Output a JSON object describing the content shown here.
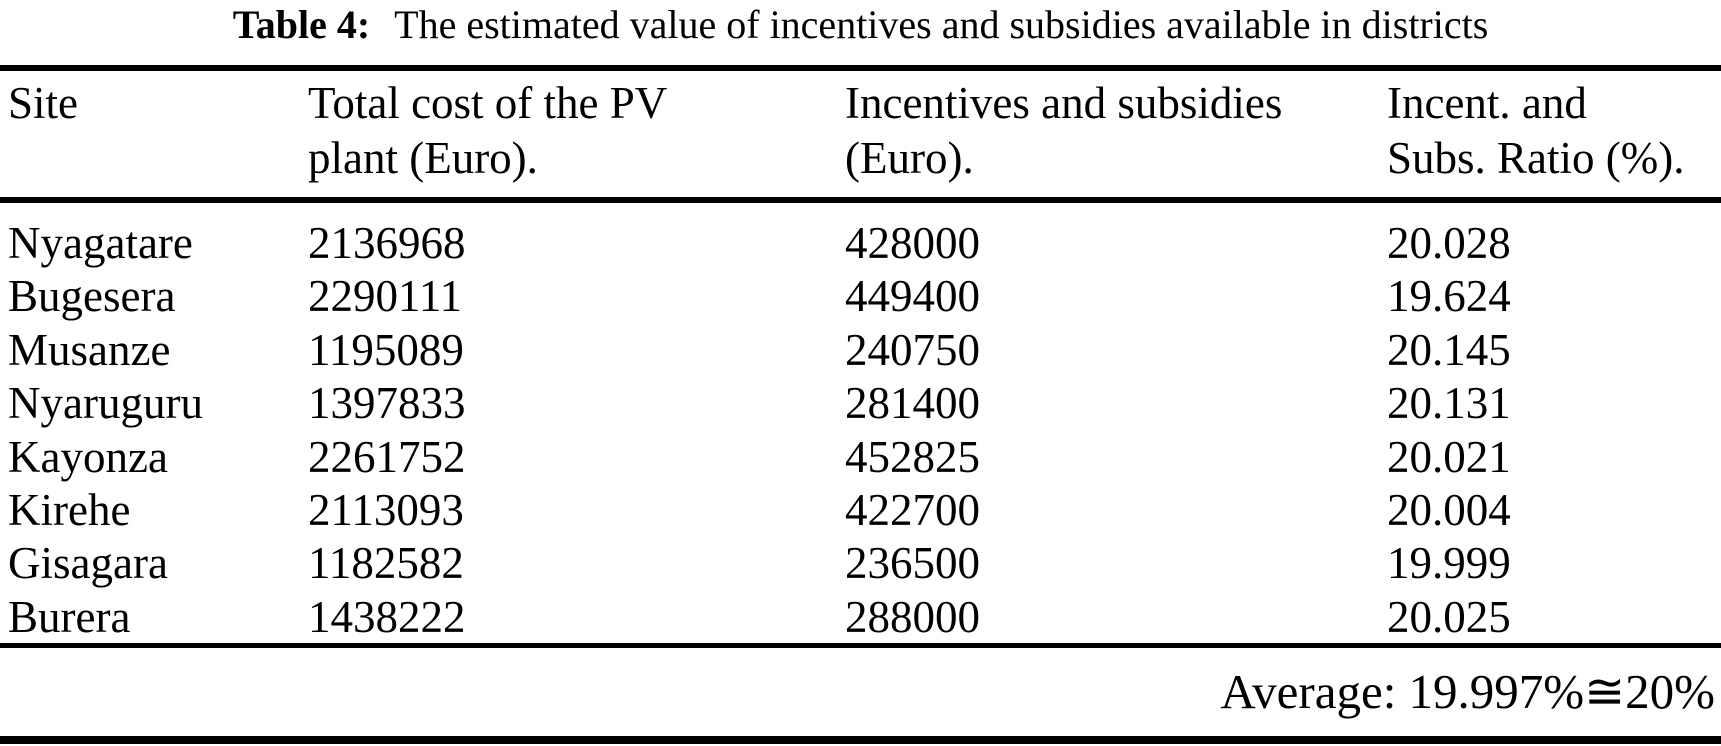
{
  "caption": {
    "label": "Table 4:",
    "text": "The estimated value of incentives and subsidies available in districts"
  },
  "table": {
    "columns": [
      {
        "id": "site",
        "lines": [
          "Site"
        ]
      },
      {
        "id": "total-cost",
        "lines": [
          "Total cost of the PV",
          "plant (Euro)."
        ]
      },
      {
        "id": "incentives",
        "lines": [
          "Incentives and subsidies",
          "(Euro)."
        ]
      },
      {
        "id": "ratio",
        "lines": [
          "Incent. and",
          "Subs. Ratio (%)."
        ]
      }
    ],
    "rows": [
      {
        "site": "Nyagatare",
        "total_cost": "2136968",
        "incentives": "428000",
        "ratio": "20.028"
      },
      {
        "site": "Bugesera",
        "total_cost": "2290111",
        "incentives": "449400",
        "ratio": "19.624"
      },
      {
        "site": "Musanze",
        "total_cost": "1195089",
        "incentives": "240750",
        "ratio": "20.145"
      },
      {
        "site": "Nyaruguru",
        "total_cost": "1397833",
        "incentives": "281400",
        "ratio": "20.131"
      },
      {
        "site": "Kayonza",
        "total_cost": "2261752",
        "incentives": "452825",
        "ratio": "20.021"
      },
      {
        "site": "Kirehe",
        "total_cost": "2113093",
        "incentives": "422700",
        "ratio": "20.004"
      },
      {
        "site": "Gisagara",
        "total_cost": "1182582",
        "incentives": "236500",
        "ratio": "19.999"
      },
      {
        "site": "Burera",
        "total_cost": "1438222",
        "incentives": "288000",
        "ratio": "20.025"
      }
    ],
    "footer": {
      "average_text": "Average: 19.997%≅20%"
    }
  },
  "colors": {
    "text": "#000000",
    "rule": "#000000",
    "background": "#ffffff"
  }
}
